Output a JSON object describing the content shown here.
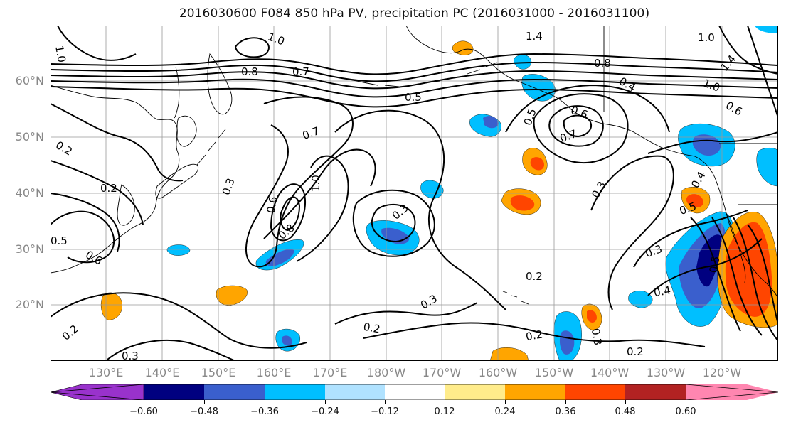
{
  "title": "2016030600 F084 850 hPa PV, precipitation PC (2016031000 - 2016031100)",
  "lat_labels": [
    "60°N",
    "50°N",
    "40°N",
    "30°N",
    "20°N"
  ],
  "lon_labels": [
    "130°E",
    "140°E",
    "150°E",
    "160°E",
    "170°E",
    "180°W",
    "170°W",
    "160°W",
    "150°W",
    "140°W",
    "130°W",
    "120°W"
  ],
  "colorbar": {
    "ticks": [
      "−0.60",
      "−0.48",
      "−0.36",
      "−0.24",
      "−0.12",
      "0.12",
      "0.24",
      "0.36",
      "0.48",
      "0.60"
    ],
    "colors": [
      "#9932cc",
      "#000080",
      "#3a5fcd",
      "#00bfff",
      "#b0e2ff",
      "#ffffff",
      "#ffec8b",
      "#ffa500",
      "#ff4500",
      "#b22222",
      "#ff86b0"
    ]
  },
  "contour_labels": [
    {
      "text": "1.0"
    },
    {
      "text": "1.0"
    },
    {
      "text": "0.8"
    },
    {
      "text": "0.7"
    },
    {
      "text": "1.4"
    },
    {
      "text": "1.0"
    },
    {
      "text": "1.4"
    },
    {
      "text": "1.0"
    },
    {
      "text": "0.8"
    },
    {
      "text": "0.5"
    },
    {
      "text": "0.6"
    },
    {
      "text": "0.7"
    },
    {
      "text": "0.5"
    },
    {
      "text": "0.4"
    },
    {
      "text": "0.6"
    },
    {
      "text": "0.7"
    },
    {
      "text": "0.2"
    },
    {
      "text": "0.2"
    },
    {
      "text": "0.3"
    },
    {
      "text": "0.6"
    },
    {
      "text": "0.8"
    },
    {
      "text": "1.0"
    },
    {
      "text": "0.3"
    },
    {
      "text": "0.3"
    },
    {
      "text": "0.5"
    },
    {
      "text": "0.5"
    },
    {
      "text": "0.6"
    },
    {
      "text": "0.3"
    },
    {
      "text": "0.2"
    },
    {
      "text": "0.4"
    },
    {
      "text": "0.3"
    },
    {
      "text": "0.2"
    },
    {
      "text": "0.2"
    },
    {
      "text": "0.2"
    },
    {
      "text": "0.3"
    },
    {
      "text": "0.2"
    },
    {
      "text": "0.3"
    },
    {
      "text": "0.4"
    },
    {
      "text": "0.5"
    }
  ]
}
